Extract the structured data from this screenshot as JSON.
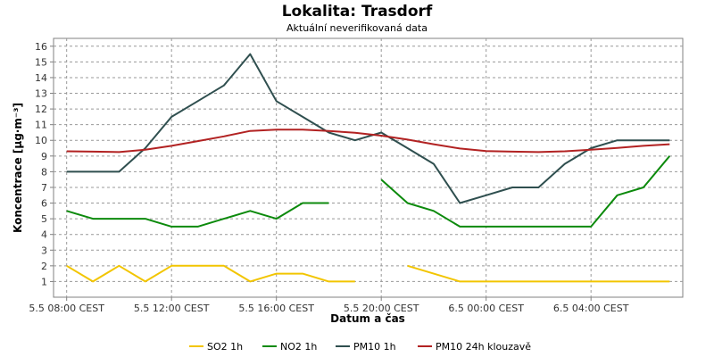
{
  "chart_data": {
    "type": "line",
    "title": "Lokalita: Trasdorf",
    "subtitle": "Aktuální neverifikovaná data",
    "xlabel": "Datum a čas",
    "ylabel": "Koncentrace [µg·m⁻³]",
    "ylim": [
      0,
      16.5
    ],
    "xlim": [
      -0.5,
      23.5
    ],
    "yticks": [
      1,
      2,
      3,
      4,
      5,
      6,
      7,
      8,
      9,
      10,
      11,
      12,
      13,
      14,
      15,
      16
    ],
    "xticks": [
      {
        "value": 0,
        "label": "5.5 08:00 CEST"
      },
      {
        "value": 4,
        "label": "5.5 12:00 CEST"
      },
      {
        "value": 8,
        "label": "5.5 16:00 CEST"
      },
      {
        "value": 12,
        "label": "5.5 20:00 CEST"
      },
      {
        "value": 16,
        "label": "6.5 00:00 CEST"
      },
      {
        "value": 20,
        "label": "6.5 04:00 CEST"
      }
    ],
    "grid": true,
    "legend_position": "bottom",
    "x_unit": "hours since 5.5 08:00 CEST",
    "series": [
      {
        "name": "SO2 1h",
        "color": "#f2c500",
        "points": [
          [
            0,
            2
          ],
          [
            1,
            1
          ],
          [
            2,
            2
          ],
          [
            3,
            1
          ],
          [
            4,
            2
          ],
          [
            5,
            2
          ],
          [
            6,
            2
          ],
          [
            7,
            1
          ],
          [
            8,
            1.5
          ],
          [
            9,
            1.5
          ],
          [
            10,
            1
          ],
          [
            11,
            1
          ],
          null,
          [
            13,
            2
          ],
          [
            14,
            1.5
          ],
          [
            15,
            1
          ],
          [
            16,
            1
          ],
          [
            17,
            1
          ],
          [
            18,
            1
          ],
          [
            19,
            1
          ],
          [
            20,
            1
          ],
          [
            21,
            1
          ],
          [
            22,
            1
          ],
          [
            23,
            1
          ]
        ]
      },
      {
        "name": "NO2 1h",
        "color": "#0c8a0c",
        "points": [
          [
            0,
            5.5
          ],
          [
            1,
            5
          ],
          [
            2,
            5
          ],
          [
            3,
            5
          ],
          [
            4,
            4.5
          ],
          [
            5,
            4.5
          ],
          [
            6,
            5
          ],
          [
            7,
            5.5
          ],
          [
            8,
            5
          ],
          [
            9,
            6
          ],
          [
            10,
            6
          ],
          null,
          [
            12,
            7.5
          ],
          [
            13,
            6
          ],
          [
            14,
            5.5
          ],
          [
            15,
            4.5
          ],
          [
            16,
            4.5
          ],
          [
            17,
            4.5
          ],
          [
            18,
            4.5
          ],
          [
            19,
            4.5
          ],
          [
            20,
            4.5
          ],
          [
            21,
            6.5
          ],
          [
            22,
            7
          ],
          [
            23,
            9
          ]
        ]
      },
      {
        "name": "PM10 1h",
        "color": "#2f4f4f",
        "points": [
          [
            0,
            8
          ],
          [
            1,
            8
          ],
          [
            2,
            8
          ],
          [
            3,
            9.5
          ],
          [
            4,
            11.5
          ],
          [
            5,
            12.5
          ],
          [
            6,
            13.5
          ],
          [
            7,
            15.5
          ],
          [
            8,
            12.5
          ],
          [
            9,
            11.5
          ],
          [
            10,
            10.5
          ],
          [
            11,
            10
          ],
          [
            12,
            10.5
          ],
          [
            13,
            9.5
          ],
          [
            14,
            8.5
          ],
          [
            15,
            6
          ],
          [
            16,
            6.5
          ],
          [
            17,
            7
          ],
          [
            18,
            7
          ],
          [
            19,
            8.5
          ],
          [
            20,
            9.5
          ],
          [
            21,
            10
          ],
          [
            22,
            10
          ],
          [
            23,
            10
          ]
        ]
      },
      {
        "name": "PM10 24h klouzavě",
        "color": "#b22222",
        "points": [
          [
            0,
            9.3
          ],
          [
            1,
            9.28
          ],
          [
            2,
            9.25
          ],
          [
            3,
            9.4
          ],
          [
            4,
            9.65
          ],
          [
            5,
            9.95
          ],
          [
            6,
            10.25
          ],
          [
            7,
            10.6
          ],
          [
            8,
            10.68
          ],
          [
            9,
            10.68
          ],
          [
            10,
            10.6
          ],
          [
            11,
            10.48
          ],
          [
            12,
            10.3
          ],
          [
            13,
            10.05
          ],
          [
            14,
            9.75
          ],
          [
            15,
            9.48
          ],
          [
            16,
            9.32
          ],
          [
            17,
            9.28
          ],
          [
            18,
            9.25
          ],
          [
            19,
            9.3
          ],
          [
            20,
            9.4
          ],
          [
            21,
            9.52
          ],
          [
            22,
            9.65
          ],
          [
            23,
            9.75
          ]
        ]
      }
    ]
  }
}
